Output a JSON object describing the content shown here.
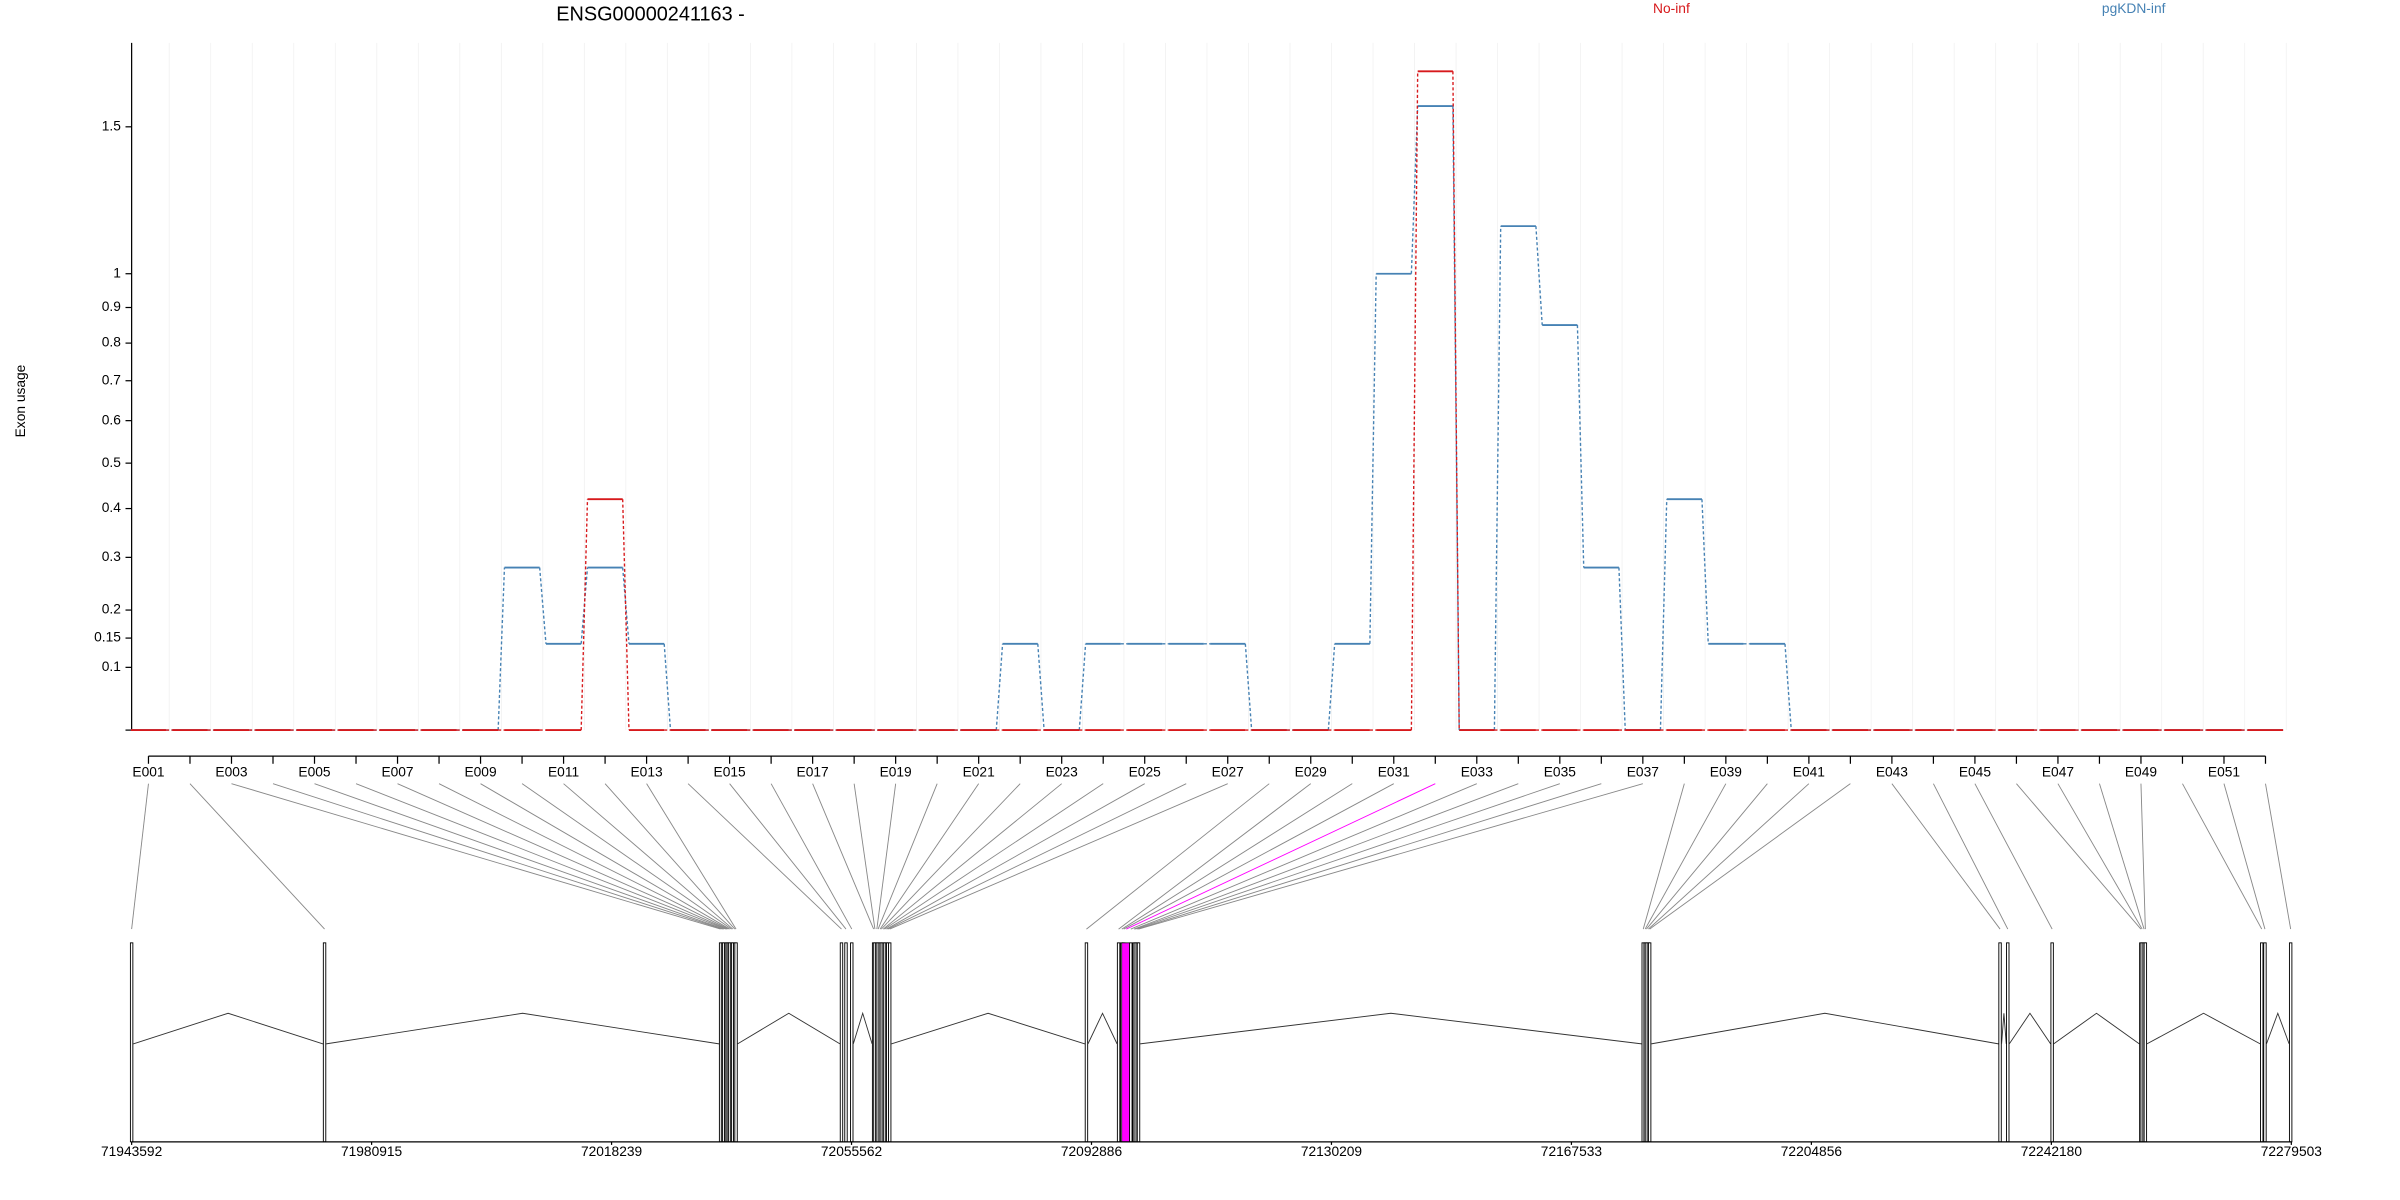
{
  "chart_data": {
    "type": "exon_step",
    "title": "ENSG00000241163 -",
    "ylabel": "Exon usage",
    "y_scale": "log10(x+1)",
    "ylim": [
      0,
      1.84
    ],
    "yticks": [
      0.1,
      0.15,
      0.2,
      0.3,
      0.4,
      0.5,
      0.6,
      0.7,
      0.8,
      0.9,
      1,
      1.5
    ],
    "grid": true,
    "categories": [
      "E001",
      null,
      "E003",
      null,
      "E005",
      null,
      "E007",
      null,
      "E009",
      null,
      "E011",
      null,
      "E013",
      null,
      "E015",
      null,
      "E017",
      null,
      "E019",
      null,
      "E021",
      null,
      "E023",
      null,
      "E025",
      null,
      "E027",
      null,
      "E029",
      null,
      "E031",
      null,
      "E033",
      null,
      "E035",
      null,
      "E037",
      null,
      "E039",
      null,
      "E041",
      null,
      "E043",
      null,
      "E045",
      null,
      "E047",
      null,
      "E049",
      null,
      "E051",
      null
    ],
    "series": [
      {
        "name": "pgKDN-inf",
        "color": "#4682b4",
        "values": [
          0,
          0,
          0,
          0,
          0,
          0,
          0,
          0,
          0,
          0.28,
          0.14,
          0.28,
          0.14,
          0,
          0,
          0,
          0,
          0,
          0,
          0,
          0,
          0.14,
          0,
          0.14,
          0.14,
          0.14,
          0.14,
          0,
          0,
          0.14,
          1,
          1.58,
          0,
          1.15,
          0.85,
          0.28,
          0,
          0.42,
          0.14,
          0.14,
          0,
          0,
          0,
          0,
          0,
          0,
          0,
          0,
          0,
          0,
          0,
          0
        ]
      },
      {
        "name": "No-inf",
        "color": "#d7191c",
        "values": [
          0,
          0,
          0,
          0,
          0,
          0,
          0,
          0,
          0,
          0,
          0,
          0.42,
          0,
          0,
          0,
          0,
          0,
          0,
          0,
          0,
          0,
          0,
          0,
          0,
          0,
          0,
          0,
          0,
          0,
          0,
          0,
          1.72,
          0,
          0,
          0,
          0,
          0,
          0,
          0,
          0,
          0,
          0,
          0,
          0,
          0,
          0,
          0,
          0,
          0,
          0,
          0,
          0
        ]
      }
    ],
    "gene_model": {
      "xlim": [
        71943592,
        72279503
      ],
      "xticks": [
        71943592,
        71980915,
        72018239,
        72055562,
        72092886,
        72130209,
        72167533,
        72204856,
        72242180,
        72279503
      ],
      "exon_starts": [
        71943592,
        71973600,
        72035200,
        72035500,
        72035700,
        72036000,
        72036200,
        72036400,
        72036600,
        72036900,
        72037100,
        72037400,
        72037600,
        72054000,
        72054700,
        72055600,
        72059000,
        72059200,
        72059500,
        72059700,
        72060000,
        72060200,
        72060500,
        72060700,
        72061000,
        72061200,
        72061500,
        72092100,
        72097100,
        72097600,
        72097900,
        72098300,
        72099000,
        72099500,
        72099700,
        72100000,
        72100200,
        72178700,
        72179000,
        72179200,
        72179500,
        72179700,
        72234200,
        72235400,
        72242300,
        72256100,
        72256300,
        72256600,
        72256800,
        72274900,
        72275400,
        72279400
      ],
      "highlight": {
        "index": 31,
        "color": "#ff00ff"
      }
    }
  }
}
